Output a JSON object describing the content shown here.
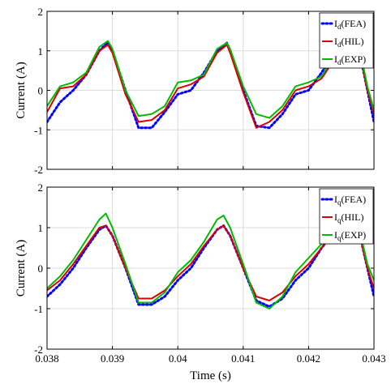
{
  "chart_data": [
    {
      "type": "line",
      "ylabel": "Current (A)",
      "xlabel": "",
      "xlim": [
        0.038,
        0.043
      ],
      "ylim": [
        -2,
        2
      ],
      "grid": true,
      "legend_position": "top-right",
      "x_ticks": [
        "",
        "",
        "",
        "",
        "",
        ""
      ],
      "y_ticks": [
        "-2",
        "-1",
        "0",
        "1",
        "2"
      ],
      "series": [
        {
          "name_main": "I",
          "name_sub": "d",
          "name_suffix": "(FEA)",
          "color": "#0000ff",
          "style": "dotted",
          "x": [
            0.038,
            0.0382,
            0.0384,
            0.0386,
            0.0388,
            0.03893,
            0.039,
            0.0392,
            0.0394,
            0.0396,
            0.0398,
            0.04,
            0.0402,
            0.0404,
            0.0406,
            0.04075,
            0.0408,
            0.041,
            0.0412,
            0.0414,
            0.0416,
            0.0418,
            0.042,
            0.0422,
            0.0424,
            0.0426,
            0.0428,
            0.0429,
            0.043
          ],
          "y": [
            -0.8,
            -0.3,
            0.0,
            0.4,
            1.0,
            1.22,
            1.0,
            0.0,
            -0.95,
            -0.95,
            -0.55,
            -0.1,
            0.0,
            0.45,
            1.0,
            1.2,
            1.0,
            0.0,
            -0.9,
            -0.95,
            -0.6,
            -0.1,
            0.0,
            0.45,
            1.0,
            1.1,
            0.8,
            0.0,
            -0.8
          ]
        },
        {
          "name_main": "I",
          "name_sub": "d",
          "name_suffix": "(HIL)",
          "color": "#dd0000",
          "style": "solid",
          "x": [
            0.038,
            0.0382,
            0.0384,
            0.0386,
            0.0388,
            0.03893,
            0.039,
            0.0392,
            0.0394,
            0.0396,
            0.0398,
            0.04,
            0.0402,
            0.0404,
            0.0406,
            0.04075,
            0.0408,
            0.041,
            0.0412,
            0.0414,
            0.0416,
            0.0418,
            0.042,
            0.0422,
            0.0424,
            0.0426,
            0.0428,
            0.0429,
            0.043
          ],
          "y": [
            -0.55,
            0.05,
            0.1,
            0.4,
            1.0,
            1.15,
            0.95,
            -0.1,
            -0.8,
            -0.75,
            -0.5,
            0.05,
            0.15,
            0.35,
            0.95,
            1.15,
            0.95,
            -0.05,
            -0.95,
            -0.8,
            -0.5,
            0.0,
            0.1,
            0.3,
            0.8,
            1.0,
            0.8,
            0.0,
            -0.6
          ]
        },
        {
          "name_main": "I",
          "name_sub": "d",
          "name_suffix": "(EXP)",
          "color": "#00bb00",
          "style": "solid",
          "x": [
            0.038,
            0.0382,
            0.0384,
            0.0386,
            0.0388,
            0.03893,
            0.039,
            0.0392,
            0.0394,
            0.0396,
            0.0398,
            0.04,
            0.0402,
            0.0404,
            0.0406,
            0.04075,
            0.0408,
            0.041,
            0.0412,
            0.0414,
            0.0416,
            0.0418,
            0.042,
            0.0422,
            0.0424,
            0.0426,
            0.0428,
            0.0429,
            0.043
          ],
          "y": [
            -0.4,
            0.1,
            0.2,
            0.45,
            1.1,
            1.25,
            1.05,
            0.0,
            -0.65,
            -0.6,
            -0.4,
            0.2,
            0.25,
            0.4,
            1.05,
            1.2,
            1.05,
            0.1,
            -0.6,
            -0.7,
            -0.4,
            0.1,
            0.2,
            0.35,
            0.9,
            1.1,
            0.9,
            0.1,
            -0.5
          ]
        }
      ]
    },
    {
      "type": "line",
      "ylabel": "Current (A)",
      "xlabel": "Time (s)",
      "xlim": [
        0.038,
        0.043
      ],
      "ylim": [
        -2,
        2
      ],
      "grid": true,
      "legend_position": "top-right",
      "x_ticks": [
        "0.038",
        "0.039",
        "0.04",
        "0.041",
        "0.042",
        "0.043"
      ],
      "y_ticks": [
        "-2",
        "-1",
        "0",
        "1",
        "2"
      ],
      "series": [
        {
          "name_main": "I",
          "name_sub": "q",
          "name_suffix": "(FEA)",
          "color": "#0000ff",
          "style": "dotted",
          "x": [
            0.038,
            0.0382,
            0.0384,
            0.0386,
            0.0388,
            0.0389,
            0.039,
            0.0392,
            0.0394,
            0.0396,
            0.0398,
            0.04,
            0.0402,
            0.0404,
            0.0406,
            0.0407,
            0.0408,
            0.041,
            0.0412,
            0.0414,
            0.0416,
            0.0418,
            0.042,
            0.0422,
            0.0424,
            0.0426,
            0.0428,
            0.0429,
            0.043
          ],
          "y": [
            -0.7,
            -0.4,
            0.0,
            0.5,
            0.95,
            1.05,
            0.8,
            0.0,
            -0.9,
            -0.9,
            -0.7,
            -0.3,
            0.0,
            0.5,
            0.95,
            1.05,
            0.8,
            0.0,
            -0.8,
            -0.95,
            -0.75,
            -0.3,
            0.0,
            0.5,
            0.9,
            1.0,
            0.7,
            0.0,
            -0.7
          ]
        },
        {
          "name_main": "I",
          "name_sub": "q",
          "name_suffix": "(HIL)",
          "color": "#dd0000",
          "style": "solid",
          "x": [
            0.038,
            0.0382,
            0.0384,
            0.0386,
            0.0388,
            0.0389,
            0.039,
            0.0392,
            0.0394,
            0.0396,
            0.0398,
            0.04,
            0.0402,
            0.0404,
            0.0406,
            0.0407,
            0.0408,
            0.041,
            0.0412,
            0.0414,
            0.0416,
            0.0418,
            0.042,
            0.0422,
            0.0424,
            0.0426,
            0.0428,
            0.0429,
            0.043
          ],
          "y": [
            -0.55,
            -0.3,
            0.1,
            0.55,
            1.0,
            1.05,
            0.8,
            0.0,
            -0.75,
            -0.75,
            -0.55,
            -0.2,
            0.1,
            0.55,
            0.95,
            1.05,
            0.8,
            0.0,
            -0.7,
            -0.8,
            -0.6,
            -0.2,
            0.1,
            0.5,
            0.9,
            1.0,
            0.7,
            0.0,
            -0.5
          ]
        },
        {
          "name_main": "I",
          "name_sub": "q",
          "name_suffix": "(EXP)",
          "color": "#00bb00",
          "style": "solid",
          "x": [
            0.038,
            0.0382,
            0.0384,
            0.0386,
            0.0388,
            0.0389,
            0.039,
            0.0392,
            0.0394,
            0.0396,
            0.0398,
            0.04,
            0.0402,
            0.0404,
            0.0406,
            0.0407,
            0.0408,
            0.041,
            0.0412,
            0.0414,
            0.0416,
            0.0418,
            0.042,
            0.0422,
            0.0424,
            0.0426,
            0.0428,
            0.0429,
            0.043
          ],
          "y": [
            -0.5,
            -0.2,
            0.2,
            0.7,
            1.2,
            1.35,
            1.0,
            0.1,
            -0.85,
            -0.85,
            -0.6,
            -0.1,
            0.2,
            0.65,
            1.2,
            1.3,
            1.0,
            0.1,
            -0.85,
            -1.0,
            -0.7,
            -0.1,
            0.25,
            0.6,
            1.05,
            1.1,
            0.8,
            0.1,
            -0.3
          ]
        }
      ]
    }
  ]
}
